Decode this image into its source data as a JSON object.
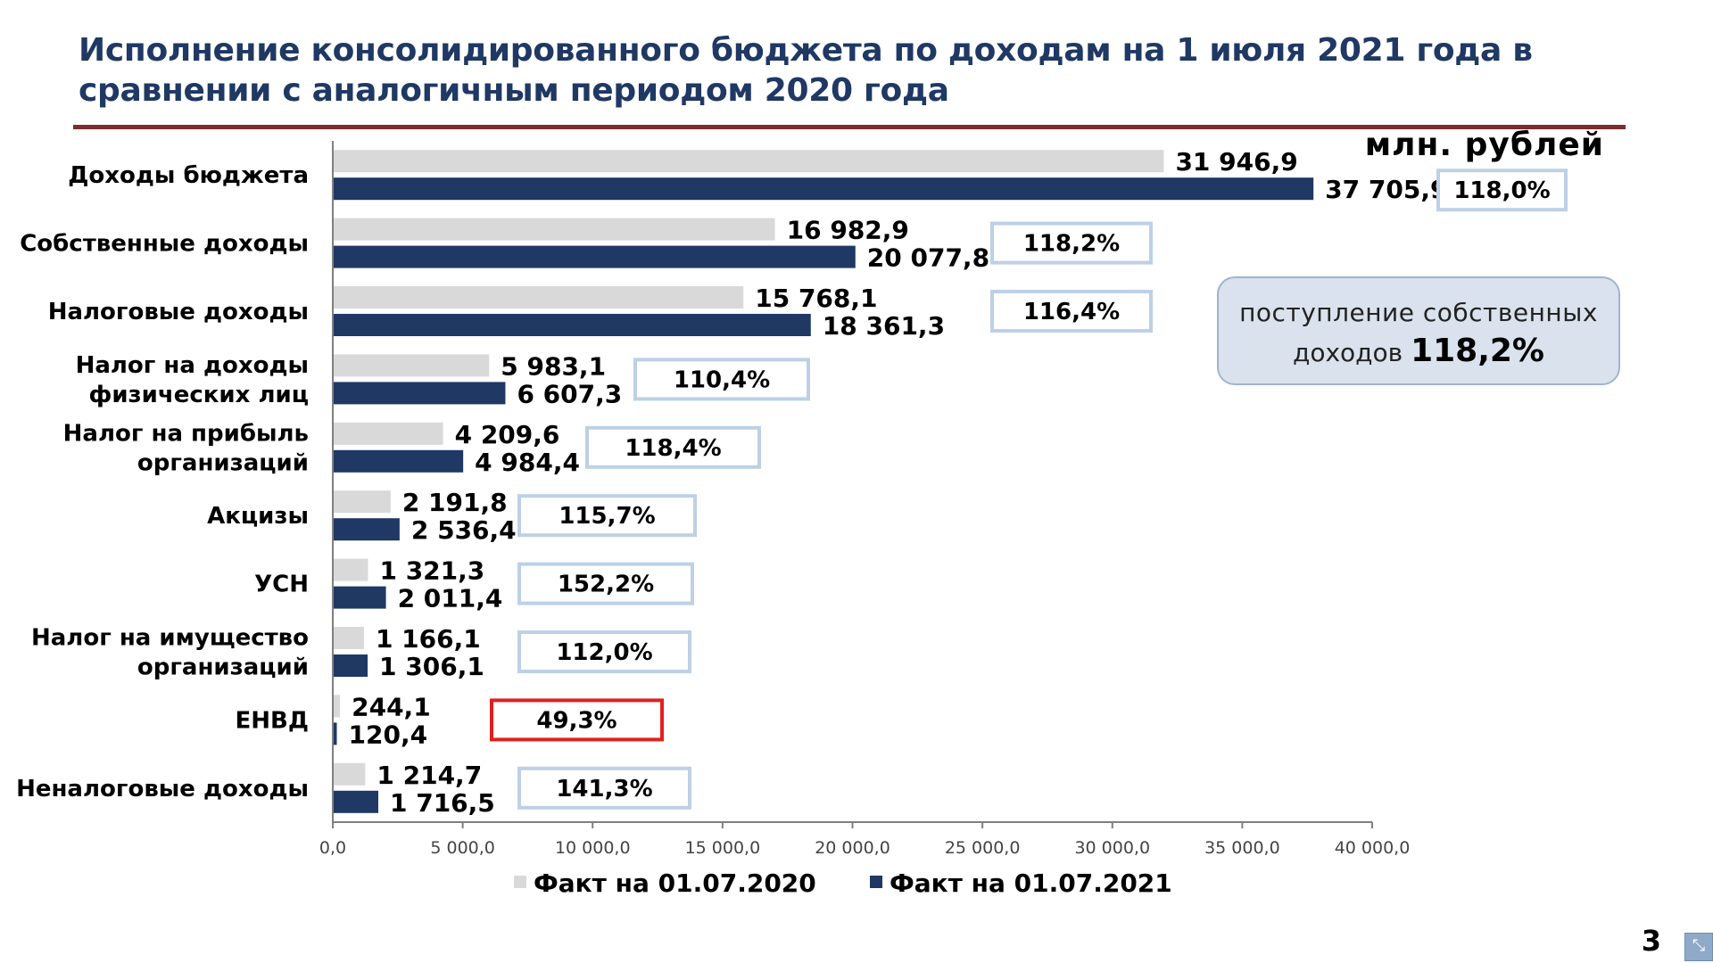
{
  "slide": {
    "title": "Исполнение консолидированного бюджета по доходам на 1 июля 2021 года в сравнении с аналогичным периодом 2020 года",
    "units": "млн. рублей",
    "info_box": {
      "text_line1": "поступление собственных",
      "text_line2_prefix": "доходов",
      "text_line2_value": "118,2%"
    },
    "page_number": "3",
    "corner_icon": "collapse-arrows-icon"
  },
  "chart_data": {
    "type": "bar",
    "orientation": "horizontal",
    "categories": [
      "Доходы бюджета",
      "Собственные доходы",
      "Налоговые доходы",
      "Налог на доходы физических лиц",
      "Налог на прибыль организаций",
      "Акцизы",
      "УСН",
      "Налог на имущество организаций",
      "ЕНВД",
      "Неналоговые доходы"
    ],
    "category_lines": [
      [
        "Доходы бюджета"
      ],
      [
        "Собственные доходы"
      ],
      [
        "Налоговые доходы"
      ],
      [
        "Налог на доходы",
        "физических лиц"
      ],
      [
        "Налог на прибыль",
        "организаций"
      ],
      [
        "Акцизы"
      ],
      [
        "УСН"
      ],
      [
        "Налог на имущество",
        "организаций"
      ],
      [
        "ЕНВД"
      ],
      [
        "Неналоговые доходы"
      ]
    ],
    "series": [
      {
        "name": "Факт на 01.07.2020",
        "color": "#d9d9d9",
        "values": [
          31946.9,
          16982.9,
          15768.1,
          5983.1,
          4209.6,
          2191.8,
          1321.3,
          1166.1,
          244.1,
          1214.7
        ],
        "labels": [
          "31 946,9",
          "16 982,9",
          "15 768,1",
          "5 983,1",
          "4 209,6",
          "2 191,8",
          "1 321,3",
          "1 166,1",
          "244,1",
          "1 214,7"
        ]
      },
      {
        "name": "Факт на 01.07.2021",
        "color": "#1f3864",
        "values": [
          37705.9,
          20077.8,
          18361.3,
          6607.3,
          4984.4,
          2536.4,
          2011.4,
          1306.1,
          120.4,
          1716.5
        ],
        "labels": [
          "37 705,9",
          "20 077,8",
          "18 361,3",
          "6 607,3",
          "4 984,4",
          "2 536,4",
          "2 011,4",
          "1 306,1",
          "120,4",
          "1 716,5"
        ]
      }
    ],
    "growth_percent": [
      "118,0%",
      "118,2%",
      "116,4%",
      "110,4%",
      "118,4%",
      "115,7%",
      "152,2%",
      "112,0%",
      "49,3%",
      "141,3%"
    ],
    "growth_highlight": [
      false,
      false,
      false,
      false,
      false,
      false,
      false,
      false,
      true,
      false
    ],
    "growth_box_color": "#bdd0e6",
    "growth_highlight_color": "#e02020",
    "xlim": [
      0,
      40000
    ],
    "x_ticks": [
      "0,0",
      "5 000,0",
      "10 000,0",
      "15 000,0",
      "20 000,0",
      "25 000,0",
      "30 000,0",
      "35 000,0",
      "40 000,0"
    ],
    "legend_position": "bottom",
    "grid": false
  }
}
